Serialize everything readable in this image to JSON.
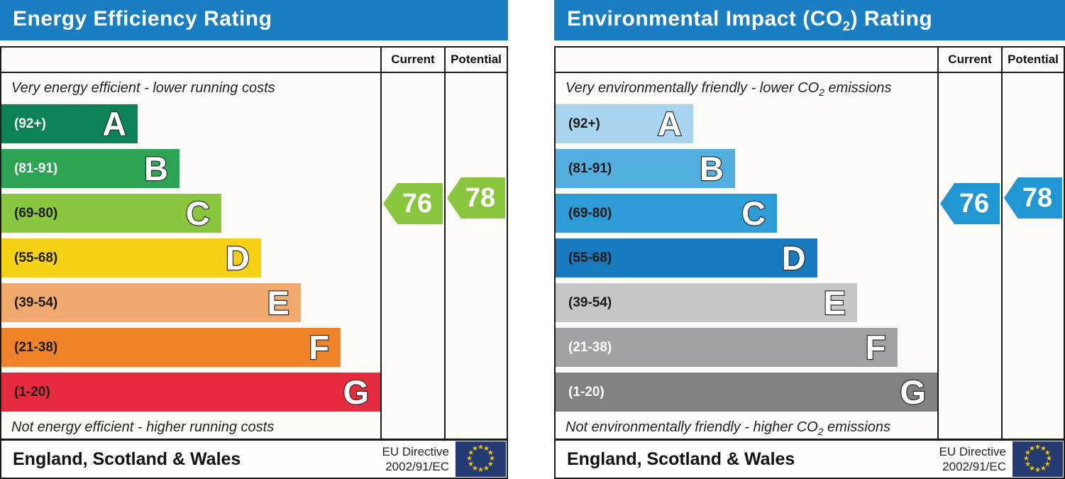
{
  "chart_data": [
    {
      "type": "bar",
      "title": "Energy Efficiency Rating",
      "categories": [
        "A (92+)",
        "B (81-91)",
        "C (69-80)",
        "D (55-68)",
        "E (39-54)",
        "F (21-38)",
        "G (1-20)"
      ],
      "band_ranges": [
        [
          92,
          100
        ],
        [
          81,
          91
        ],
        [
          69,
          80
        ],
        [
          55,
          68
        ],
        [
          39,
          54
        ],
        [
          21,
          38
        ],
        [
          1,
          20
        ]
      ],
      "band_colors": [
        "#0b8155",
        "#2ca453",
        "#8bc63f",
        "#f4d114",
        "#f2a96d",
        "#ee8329",
        "#e52b3e"
      ],
      "bar_lengths_pct": [
        36,
        47,
        58,
        68.5,
        79,
        89.5,
        100
      ],
      "current": 76,
      "potential": 78,
      "current_band": "C",
      "potential_band": "C",
      "top_caption": "Very energy efficient - lower running costs",
      "bottom_caption": "Not energy efficient - higher running costs",
      "region": "England, Scotland & Wales",
      "directive": "EU Directive 2002/91/EC",
      "legend_position": "none",
      "grid": false
    },
    {
      "type": "bar",
      "title": "Environmental Impact (CO2) Rating",
      "categories": [
        "A (92+)",
        "B (81-91)",
        "C (69-80)",
        "D (55-68)",
        "E (39-54)",
        "F (21-38)",
        "G (1-20)"
      ],
      "band_ranges": [
        [
          92,
          100
        ],
        [
          81,
          91
        ],
        [
          69,
          80
        ],
        [
          55,
          68
        ],
        [
          39,
          54
        ],
        [
          21,
          38
        ],
        [
          1,
          20
        ]
      ],
      "band_colors": [
        "#a7d5ef",
        "#53afe0",
        "#2d9bd5",
        "#1779be",
        "#c6c6c6",
        "#a1a1a3",
        "#818181"
      ],
      "bar_lengths_pct": [
        36,
        47,
        58,
        68.5,
        79,
        89.5,
        100
      ],
      "current": 76,
      "potential": 78,
      "current_band": "C",
      "potential_band": "C",
      "top_caption": "Very environmentally friendly - lower CO2 emissions",
      "bottom_caption": "Not environmentally friendly - higher CO2 emissions",
      "region": "England, Scotland & Wales",
      "directive": "EU Directive 2002/91/EC",
      "legend_position": "none",
      "grid": false
    }
  ],
  "colors": {
    "header_blue": "#1b7ec2",
    "border": "#1a1a1a",
    "arrow_green": "#8bc63f",
    "arrow_blue": "#2196d3",
    "flag_blue": "#233a73",
    "star_yellow": "#f2c500"
  },
  "panels": [
    {
      "name": "energy-efficiency",
      "title": {
        "pre": "Energy Efficiency Rating",
        "sub": "",
        "post": ""
      },
      "header": {
        "current": "Current",
        "potential": "Potential"
      },
      "captions": {
        "top": {
          "pre": "Very energy efficient - lower running costs",
          "sub": "",
          "post": ""
        },
        "bottom": {
          "pre": "Not energy efficient - higher running costs",
          "sub": "",
          "post": ""
        }
      },
      "bands": [
        {
          "letter": "A",
          "range": "(92+)",
          "color": "#0b8155",
          "width_pct": 36,
          "text_color": "#ffffff"
        },
        {
          "letter": "B",
          "range": "(81-91)",
          "color": "#2ca453",
          "width_pct": 47,
          "text_color": "#ffffff"
        },
        {
          "letter": "C",
          "range": "(69-80)",
          "color": "#8bc63f",
          "width_pct": 58,
          "text_color": "#1a1a1a"
        },
        {
          "letter": "D",
          "range": "(55-68)",
          "color": "#f4d114",
          "width_pct": 68.5,
          "text_color": "#1a1a1a"
        },
        {
          "letter": "E",
          "range": "(39-54)",
          "color": "#f2a96d",
          "width_pct": 79,
          "text_color": "#1a1a1a"
        },
        {
          "letter": "F",
          "range": "(21-38)",
          "color": "#ee8329",
          "width_pct": 89.5,
          "text_color": "#1a1a1a"
        },
        {
          "letter": "G",
          "range": "(1-20)",
          "color": "#e52b3e",
          "width_pct": 100,
          "text_color": "#1a1a1a"
        }
      ],
      "arrows": {
        "current": {
          "value": "76",
          "color": "#8bc63f"
        },
        "potential": {
          "value": "78",
          "color": "#8bc63f"
        }
      },
      "footer": {
        "region": "England, Scotland & Wales",
        "directive_line1": "EU Directive",
        "directive_line2": "2002/91/EC"
      }
    },
    {
      "name": "environmental-impact",
      "title": {
        "pre": "Environmental Impact (CO",
        "sub": "2",
        "post": ") Rating"
      },
      "header": {
        "current": "Current",
        "potential": "Potential"
      },
      "captions": {
        "top": {
          "pre": "Very environmentally friendly - lower CO",
          "sub": "2",
          "post": " emissions"
        },
        "bottom": {
          "pre": "Not environmentally friendly - higher CO",
          "sub": "2",
          "post": " emissions"
        }
      },
      "bands": [
        {
          "letter": "A",
          "range": "(92+)",
          "color": "#a7d5ef",
          "width_pct": 36,
          "text_color": "#1a1a1a"
        },
        {
          "letter": "B",
          "range": "(81-91)",
          "color": "#53afe0",
          "width_pct": 47,
          "text_color": "#1a1a1a"
        },
        {
          "letter": "C",
          "range": "(69-80)",
          "color": "#2d9bd5",
          "width_pct": 58,
          "text_color": "#1a1a1a"
        },
        {
          "letter": "D",
          "range": "(55-68)",
          "color": "#1779be",
          "width_pct": 68.5,
          "text_color": "#1a1a1a"
        },
        {
          "letter": "E",
          "range": "(39-54)",
          "color": "#c6c6c6",
          "width_pct": 79,
          "text_color": "#1a1a1a"
        },
        {
          "letter": "F",
          "range": "(21-38)",
          "color": "#a1a1a3",
          "width_pct": 89.5,
          "text_color": "#ffffff"
        },
        {
          "letter": "G",
          "range": "(1-20)",
          "color": "#818181",
          "width_pct": 100,
          "text_color": "#ffffff"
        }
      ],
      "arrows": {
        "current": {
          "value": "76",
          "color": "#2196d3"
        },
        "potential": {
          "value": "78",
          "color": "#2196d3"
        }
      },
      "footer": {
        "region": "England, Scotland & Wales",
        "directive_line1": "EU Directive",
        "directive_line2": "2002/91/EC"
      }
    }
  ]
}
